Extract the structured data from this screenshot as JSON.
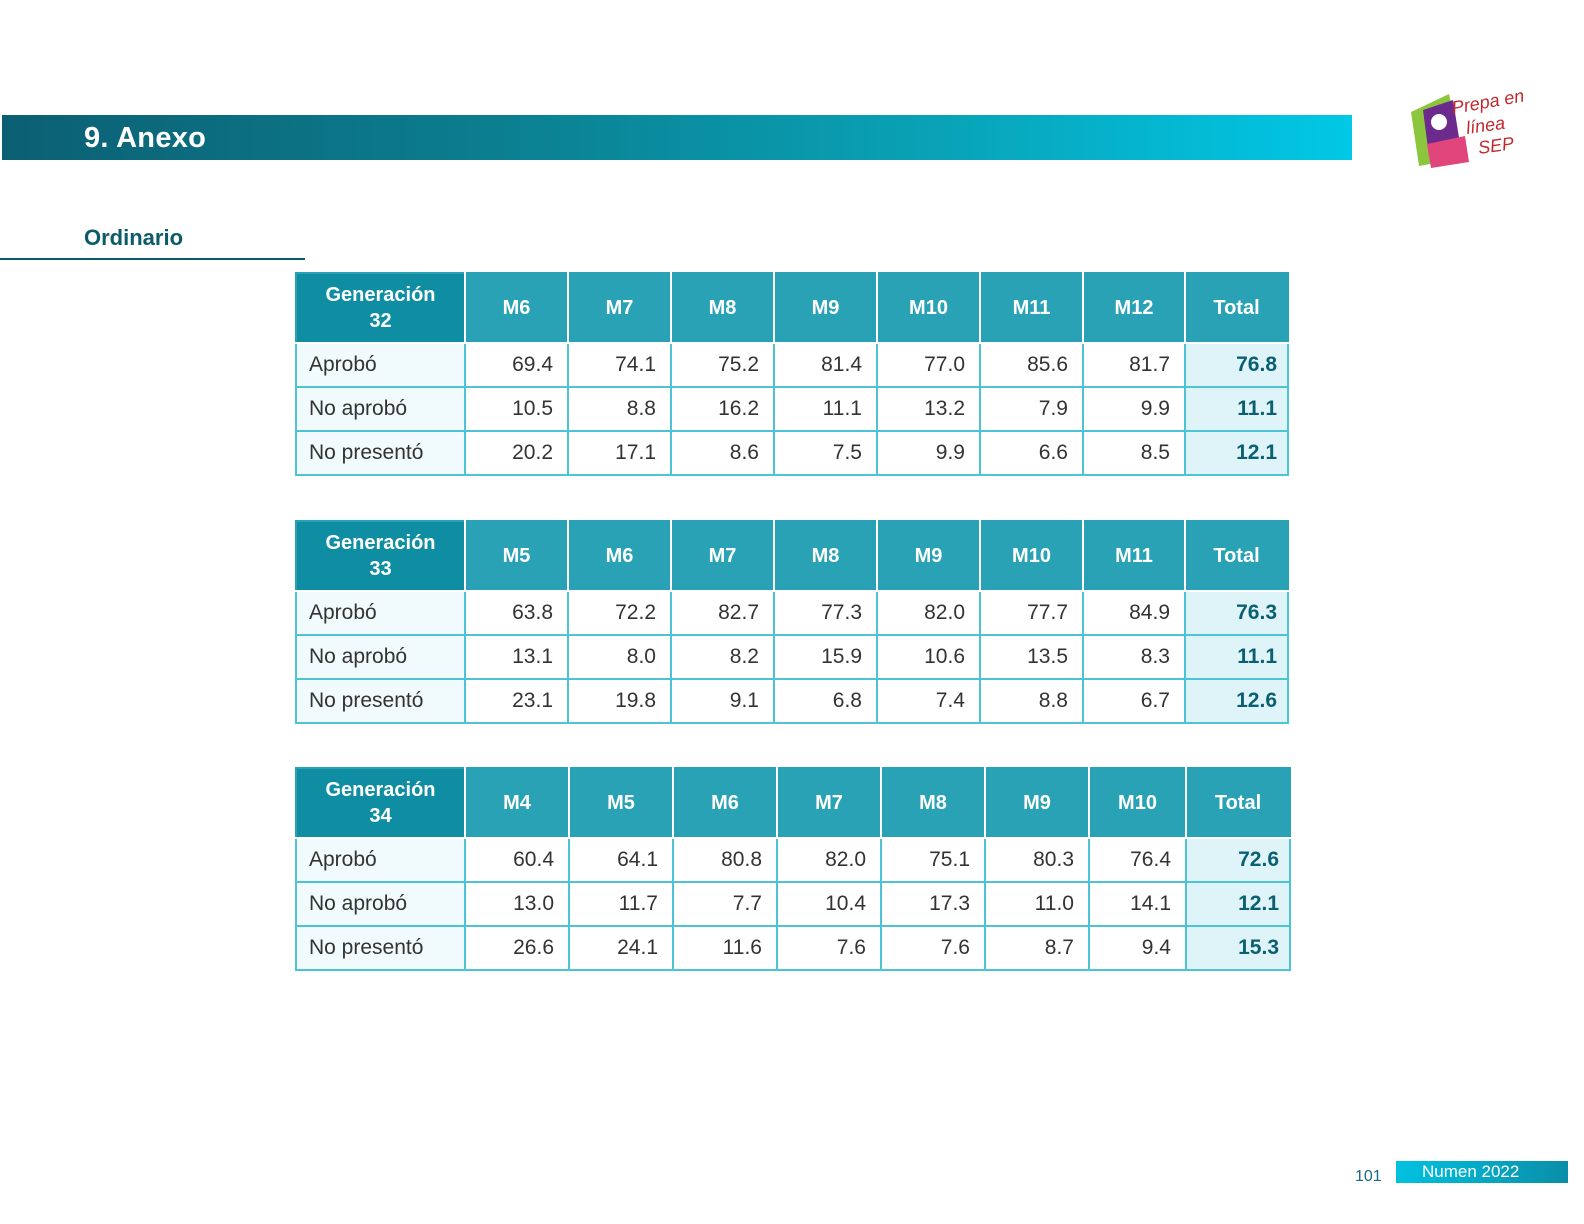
{
  "header": {
    "title": "9. Anexo"
  },
  "logo": {
    "line1": "Prepa en",
    "line2": "línea",
    "line3": "SEP"
  },
  "section": {
    "title": "Ordinario"
  },
  "tables": [
    {
      "generation": "Generación 32",
      "columns": [
        "M6",
        "M7",
        "M8",
        "M9",
        "M10",
        "M11",
        "M12",
        "Total"
      ],
      "rows": [
        {
          "label": "Aprobó",
          "values": [
            "69.4",
            "74.1",
            "75.2",
            "81.4",
            "77.0",
            "85.6",
            "81.7",
            "76.8"
          ]
        },
        {
          "label": "No aprobó",
          "values": [
            "10.5",
            "8.8",
            "16.2",
            "11.1",
            "13.2",
            "7.9",
            "9.9",
            "11.1"
          ]
        },
        {
          "label": "No presentó",
          "values": [
            "20.2",
            "17.1",
            "8.6",
            "7.5",
            "9.9",
            "6.6",
            "8.5",
            "12.1"
          ]
        }
      ]
    },
    {
      "generation": "Generación 33",
      "columns": [
        "M5",
        "M6",
        "M7",
        "M8",
        "M9",
        "M10",
        "M11",
        "Total"
      ],
      "rows": [
        {
          "label": "Aprobó",
          "values": [
            "63.8",
            "72.2",
            "82.7",
            "77.3",
            "82.0",
            "77.7",
            "84.9",
            "76.3"
          ]
        },
        {
          "label": "No aprobó",
          "values": [
            "13.1",
            "8.0",
            "8.2",
            "15.9",
            "10.6",
            "13.5",
            "8.3",
            "11.1"
          ]
        },
        {
          "label": "No presentó",
          "values": [
            "23.1",
            "19.8",
            "9.1",
            "6.8",
            "7.4",
            "8.8",
            "6.7",
            "12.6"
          ]
        }
      ]
    },
    {
      "generation": "Generación 34",
      "columns": [
        "M4",
        "M5",
        "M6",
        "M7",
        "M8",
        "M9",
        "M10",
        "Total"
      ],
      "rows": [
        {
          "label": "Aprobó",
          "values": [
            "60.4",
            "64.1",
            "80.8",
            "82.0",
            "75.1",
            "80.3",
            "76.4",
            "72.6"
          ]
        },
        {
          "label": "No aprobó",
          "values": [
            "13.0",
            "11.7",
            "7.7",
            "10.4",
            "17.3",
            "11.0",
            "14.1",
            "12.1"
          ]
        },
        {
          "label": "No presentó",
          "values": [
            "26.6",
            "24.1",
            "11.6",
            "7.6",
            "7.6",
            "8.7",
            "9.4",
            "15.3"
          ]
        }
      ]
    }
  ],
  "footer": {
    "page": "101",
    "label": "Numen 2022"
  }
}
